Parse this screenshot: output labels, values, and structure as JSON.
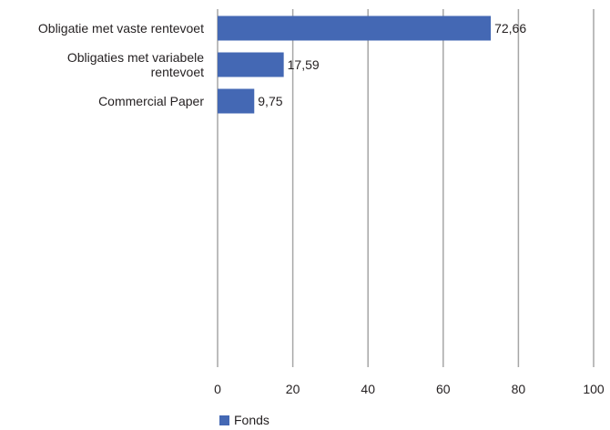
{
  "colors": {
    "bar": "#4468b4",
    "grid": "#a6a6a6"
  },
  "chart_data": {
    "type": "bar",
    "orientation": "horizontal",
    "categories": [
      [
        "Obligatie met vaste rentevoet"
      ],
      [
        "Obligaties met variabele",
        "rentevoet"
      ],
      [
        "Commercial Paper"
      ]
    ],
    "series": [
      {
        "name": "Fonds",
        "values": [
          72.66,
          17.59,
          9.75
        ]
      }
    ],
    "data_labels": [
      "72,66",
      "17,59",
      "9,75"
    ],
    "xlim": [
      0,
      100
    ],
    "ticks": [
      0,
      20,
      40,
      60,
      80,
      100
    ],
    "grid": "vertical",
    "legend": {
      "position": "bottom-left",
      "label": "Fonds"
    }
  }
}
